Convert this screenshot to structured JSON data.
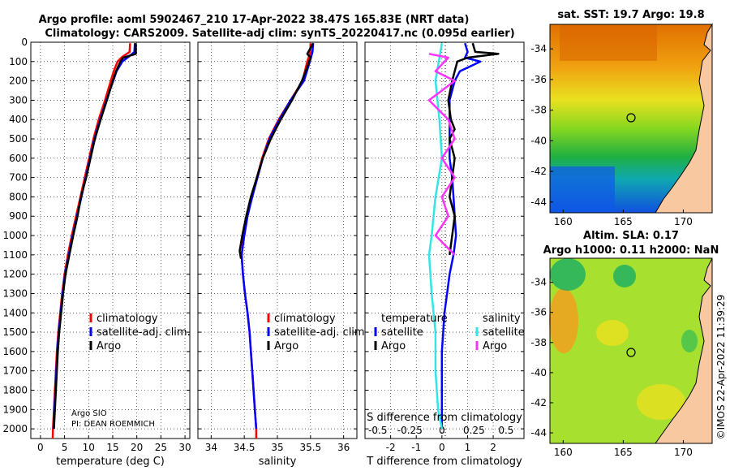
{
  "header": {
    "line1": "Argo profile: aoml 5902467_210 17-Apr-2022 38.47S 165.83E (NRT data)",
    "line2": "Climatology: CARS2009. Satellite-adj clim: synTS_20220417.nc (0.095d earlier)"
  },
  "colors": {
    "climatology": "#ff0000",
    "satellite": "#0000ff",
    "argo": "#000000",
    "sat_salinity": "#33e5e5",
    "argo_salinity": "#ff33ff"
  },
  "chart_data": [
    {
      "id": "temperature",
      "type": "line",
      "xlabel": "temperature (deg C)",
      "ylabel": "depth",
      "xlim": [
        -2,
        31
      ],
      "ylim": [
        2050,
        0
      ],
      "xticks": [
        0,
        5,
        10,
        15,
        20,
        25,
        30
      ],
      "yticks": [
        0,
        100,
        200,
        300,
        400,
        500,
        600,
        700,
        800,
        900,
        1000,
        1100,
        1200,
        1300,
        1400,
        1500,
        1600,
        1700,
        1800,
        1900,
        2000
      ],
      "legend": [
        "climatology",
        "satellite-adj. clim.",
        "Argo"
      ],
      "annotation": [
        "Argo SIO",
        "PI: DEAN ROEMMICH"
      ],
      "series": [
        {
          "name": "climatology",
          "color": "#ff0000",
          "points": [
            [
              18.6,
              5
            ],
            [
              18.5,
              50
            ],
            [
              17.0,
              75
            ],
            [
              16.0,
              100
            ],
            [
              15.2,
              150
            ],
            [
              14.6,
              200
            ],
            [
              13.4,
              300
            ],
            [
              12.1,
              400
            ],
            [
              11.0,
              500
            ],
            [
              10.1,
              600
            ],
            [
              9.2,
              700
            ],
            [
              8.3,
              800
            ],
            [
              7.4,
              900
            ],
            [
              6.5,
              1000
            ],
            [
              5.7,
              1100
            ],
            [
              5.0,
              1200
            ],
            [
              4.5,
              1300
            ],
            [
              4.1,
              1400
            ],
            [
              3.7,
              1500
            ],
            [
              3.4,
              1600
            ],
            [
              3.2,
              1700
            ],
            [
              3.0,
              1800
            ],
            [
              2.8,
              1900
            ],
            [
              2.6,
              2000
            ],
            [
              2.55,
              2050
            ]
          ]
        },
        {
          "name": "satellite-adj. clim.",
          "color": "#0000ff",
          "points": [
            [
              19.6,
              5
            ],
            [
              19.5,
              50
            ],
            [
              18.3,
              75
            ],
            [
              17.0,
              100
            ],
            [
              15.8,
              150
            ],
            [
              15.1,
              200
            ],
            [
              13.7,
              300
            ],
            [
              12.4,
              400
            ],
            [
              11.2,
              500
            ],
            [
              10.3,
              600
            ],
            [
              9.4,
              700
            ],
            [
              8.5,
              800
            ],
            [
              7.6,
              900
            ],
            [
              6.7,
              1000
            ],
            [
              5.9,
              1100
            ],
            [
              5.1,
              1200
            ],
            [
              4.6,
              1300
            ],
            [
              4.2,
              1400
            ],
            [
              3.8,
              1500
            ],
            [
              3.5,
              1600
            ],
            [
              3.3,
              1700
            ],
            [
              3.1,
              1800
            ],
            [
              2.9,
              1900
            ],
            [
              2.7,
              2000
            ]
          ]
        },
        {
          "name": "Argo",
          "color": "#000000",
          "points": [
            [
              19.8,
              5
            ],
            [
              19.8,
              60
            ],
            [
              17.2,
              80
            ],
            [
              16.6,
              100
            ],
            [
              15.7,
              150
            ],
            [
              15.0,
              200
            ],
            [
              13.8,
              300
            ],
            [
              12.5,
              400
            ],
            [
              11.3,
              500
            ],
            [
              10.4,
              600
            ],
            [
              9.5,
              700
            ],
            [
              8.4,
              800
            ],
            [
              7.7,
              900
            ],
            [
              6.8,
              1000
            ],
            [
              6.0,
              1100
            ],
            [
              5.2,
              1200
            ],
            [
              4.7,
              1300
            ],
            [
              4.3,
              1400
            ],
            [
              3.9,
              1500
            ],
            [
              3.6,
              1600
            ],
            [
              3.4,
              1700
            ],
            [
              3.2,
              1800
            ],
            [
              3.0,
              1900
            ],
            [
              2.8,
              2000
            ]
          ]
        }
      ]
    },
    {
      "id": "salinity",
      "type": "line",
      "xlabel": "salinity",
      "ylabel": "depth",
      "xlim": [
        33.8,
        36.2
      ],
      "ylim": [
        2050,
        0
      ],
      "xticks": [
        34,
        34.5,
        35,
        35.5,
        36
      ],
      "xticklabels": [
        "34",
        "34.5",
        "35",
        "35.5",
        "36"
      ],
      "legend": [
        "climatology",
        "satellite-adj. clim.",
        "Argo"
      ],
      "series": [
        {
          "name": "climatology",
          "color": "#ff0000",
          "points": [
            [
              35.5,
              5
            ],
            [
              35.5,
              50
            ],
            [
              35.45,
              100
            ],
            [
              35.38,
              200
            ],
            [
              35.2,
              300
            ],
            [
              35.02,
              400
            ],
            [
              34.87,
              500
            ],
            [
              34.77,
              600
            ],
            [
              34.69,
              700
            ],
            [
              34.61,
              800
            ],
            [
              34.54,
              900
            ],
            [
              34.49,
              1000
            ],
            [
              34.46,
              1100
            ],
            [
              34.48,
              1200
            ],
            [
              34.51,
              1300
            ],
            [
              34.55,
              1400
            ],
            [
              34.58,
              1500
            ],
            [
              34.6,
              1600
            ],
            [
              34.62,
              1700
            ],
            [
              34.64,
              1800
            ],
            [
              34.66,
              1900
            ],
            [
              34.68,
              2000
            ],
            [
              34.68,
              2050
            ]
          ]
        },
        {
          "name": "satellite-adj. clim.",
          "color": "#0000ff",
          "points": [
            [
              35.54,
              5
            ],
            [
              35.53,
              50
            ],
            [
              35.49,
              100
            ],
            [
              35.4,
              200
            ],
            [
              35.2,
              300
            ],
            [
              35.03,
              400
            ],
            [
              34.88,
              500
            ],
            [
              34.78,
              600
            ],
            [
              34.7,
              700
            ],
            [
              34.62,
              800
            ],
            [
              34.55,
              900
            ],
            [
              34.5,
              1000
            ],
            [
              34.46,
              1100
            ],
            [
              34.48,
              1200
            ],
            [
              34.51,
              1300
            ],
            [
              34.55,
              1400
            ],
            [
              34.58,
              1500
            ],
            [
              34.6,
              1600
            ],
            [
              34.62,
              1700
            ],
            [
              34.64,
              1800
            ],
            [
              34.66,
              1900
            ],
            [
              34.68,
              2000
            ]
          ]
        },
        {
          "name": "Argo",
          "color": "#000000",
          "points": [
            [
              35.54,
              5
            ],
            [
              35.45,
              60
            ],
            [
              35.5,
              80
            ],
            [
              35.46,
              120
            ],
            [
              35.37,
              200
            ],
            [
              35.22,
              300
            ],
            [
              35.05,
              400
            ],
            [
              34.9,
              500
            ],
            [
              34.78,
              600
            ],
            [
              34.69,
              700
            ],
            [
              34.6,
              800
            ],
            [
              34.53,
              900
            ],
            [
              34.47,
              1000
            ],
            [
              34.43,
              1080
            ],
            [
              34.45,
              1120
            ]
          ]
        }
      ]
    },
    {
      "id": "difference",
      "type": "line",
      "xlabel": "T difference from climatology",
      "x2label": "S difference from climatology",
      "ylabel": "depth",
      "xlim": [
        -3,
        3.2
      ],
      "ylim": [
        2050,
        0
      ],
      "xticks": [
        -2,
        -1,
        0,
        1,
        2
      ],
      "xticklabels": [
        "-2",
        "-1",
        "0",
        "1",
        "2"
      ],
      "x2ticks": [
        -0.5,
        -0.25,
        0,
        0.25,
        0.5
      ],
      "x2ticklabels": [
        "-0.5",
        "-0.25",
        "0",
        "0.25",
        "0.5"
      ],
      "legend_temperature": {
        "title": "temperature",
        "items": [
          "satellite",
          "Argo"
        ]
      },
      "legend_salinity": {
        "title": "salinity",
        "items": [
          "satellite",
          "Argo"
        ]
      },
      "series": [
        {
          "name": "T satellite",
          "color": "#0000ff",
          "points": [
            [
              0.9,
              5
            ],
            [
              1.0,
              50
            ],
            [
              0.9,
              80
            ],
            [
              1.5,
              100
            ],
            [
              0.7,
              150
            ],
            [
              0.5,
              200
            ],
            [
              0.3,
              300
            ],
            [
              0.3,
              400
            ],
            [
              0.3,
              500
            ],
            [
              0.3,
              600
            ],
            [
              0.4,
              700
            ],
            [
              0.45,
              800
            ],
            [
              0.5,
              900
            ],
            [
              0.55,
              1000
            ],
            [
              0.45,
              1100
            ],
            [
              0.3,
              1200
            ],
            [
              0.2,
              1300
            ],
            [
              0.1,
              1400
            ],
            [
              0.05,
              1500
            ],
            [
              0.0,
              1600
            ],
            [
              0.0,
              1800
            ],
            [
              0.0,
              2000
            ]
          ]
        },
        {
          "name": "T Argo",
          "color": "#000000",
          "points": [
            [
              1.2,
              5
            ],
            [
              1.3,
              50
            ],
            [
              2.2,
              60
            ],
            [
              1.0,
              80
            ],
            [
              0.6,
              100
            ],
            [
              0.5,
              150
            ],
            [
              0.4,
              200
            ],
            [
              0.25,
              300
            ],
            [
              0.35,
              400
            ],
            [
              0.5,
              450
            ],
            [
              0.3,
              500
            ],
            [
              0.5,
              600
            ],
            [
              0.4,
              700
            ],
            [
              0.3,
              800
            ],
            [
              0.5,
              900
            ],
            [
              0.4,
              1000
            ],
            [
              0.3,
              1100
            ]
          ]
        },
        {
          "name": "S satellite",
          "color": "#33e5e5",
          "points": [
            [
              0.0,
              5
            ],
            [
              -0.05,
              200
            ],
            [
              -0.02,
              400
            ],
            [
              0.0,
              600
            ],
            [
              -0.05,
              800
            ],
            [
              -0.08,
              1000
            ],
            [
              -0.1,
              1100
            ],
            [
              -0.08,
              1300
            ],
            [
              -0.05,
              1500
            ],
            [
              -0.05,
              1700
            ],
            [
              -0.03,
              1900
            ],
            [
              0.0,
              2000
            ]
          ]
        },
        {
          "name": "S Argo",
          "color": "#ff33ff",
          "points": [
            [
              -0.1,
              60
            ],
            [
              0.05,
              80
            ],
            [
              -0.05,
              150
            ],
            [
              0.1,
              200
            ],
            [
              -0.1,
              300
            ],
            [
              0.05,
              400
            ],
            [
              0.1,
              500
            ],
            [
              0.0,
              600
            ],
            [
              0.1,
              700
            ],
            [
              0.0,
              800
            ],
            [
              0.05,
              900
            ],
            [
              -0.05,
              1000
            ],
            [
              0.1,
              1100
            ]
          ]
        }
      ]
    }
  ],
  "map_sst": {
    "title": "sat. SST: 19.7 Argo: 19.8",
    "yticklabels": [
      "-34",
      "-36",
      "-38",
      "-40",
      "-42",
      "-44"
    ],
    "xticklabels": [
      "160",
      "165",
      "170"
    ]
  },
  "map_sla": {
    "title1": "Altim. SLA: 0.17",
    "title2": "Argo h1000: 0.11 h2000: NaN",
    "yticklabels": [
      "-34",
      "-36",
      "-38",
      "-40",
      "-42",
      "-44"
    ],
    "xticklabels": [
      "160",
      "165",
      "170"
    ]
  },
  "credit": "©IMOS 22-Apr-2022 11:39:29"
}
